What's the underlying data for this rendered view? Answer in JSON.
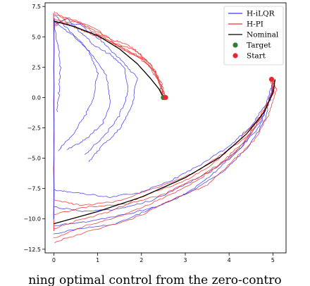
{
  "chart_data": {
    "type": "line",
    "title": "",
    "xlabel": "",
    "ylabel": "",
    "xlim": [
      -0.2,
      5.3
    ],
    "ylim": [
      -12.8,
      7.8
    ],
    "x_ticks": [
      0,
      1,
      2,
      3,
      4,
      5
    ],
    "x_tick_labels": [
      "0",
      "1",
      "2",
      "3",
      "4",
      "5"
    ],
    "y_ticks": [
      7.5,
      5.0,
      2.5,
      0.0,
      -2.5,
      -5.0,
      -7.5,
      -10.0,
      -12.5
    ],
    "y_tick_labels": [
      "7.5",
      "5.0",
      "2.5",
      "0.0",
      "−2.5",
      "−5.0",
      "−7.5",
      "−10.0",
      "−12.5"
    ],
    "grid": false,
    "legend_position": "top-right",
    "colors": {
      "h_ilqr": "#3b3bf0",
      "h_pi": "#f03030",
      "nominal": "#000000",
      "target": "#2e7d32",
      "start": "#e8262d"
    },
    "legend": [
      {
        "key": "h_ilqr",
        "label": "H-iLQR",
        "marker": "line"
      },
      {
        "key": "h_pi",
        "label": "H-PI",
        "marker": "line"
      },
      {
        "key": "nominal",
        "label": "Nominal",
        "marker": "line"
      },
      {
        "key": "target",
        "label": "Target",
        "marker": "dot"
      },
      {
        "key": "start",
        "label": "Start",
        "marker": "dot"
      }
    ],
    "series": [
      {
        "key": "nominal",
        "x": [
          0.0,
          0.5,
          1.0,
          1.5,
          1.9,
          2.2,
          2.4,
          2.5
        ],
        "y": [
          6.3,
          5.8,
          5.1,
          4.0,
          2.8,
          1.6,
          0.7,
          0.0
        ]
      },
      {
        "key": "nominal",
        "x": [
          0.0,
          1.0,
          2.0,
          3.0,
          3.8,
          4.4,
          4.8,
          5.0,
          5.05
        ],
        "y": [
          -10.4,
          -9.4,
          -8.2,
          -6.6,
          -4.9,
          -3.0,
          -1.2,
          0.4,
          1.5
        ]
      },
      {
        "key": "target",
        "x": [
          2.5
        ],
        "y": [
          0.0
        ]
      },
      {
        "key": "start",
        "x": [
          2.55,
          4.97
        ],
        "y": [
          0.0,
          1.5
        ]
      }
    ],
    "trajectories": {
      "h_pi_upper": [
        {
          "x": [
            0.0,
            0.4,
            0.9,
            1.3,
            1.7,
            2.0,
            2.3,
            2.45,
            2.5
          ],
          "y": [
            6.9,
            6.4,
            5.6,
            4.8,
            4.3,
            3.5,
            2.3,
            1.0,
            0.0
          ]
        },
        {
          "x": [
            0.0,
            0.5,
            1.0,
            1.4,
            1.8,
            2.1,
            2.35,
            2.5
          ],
          "y": [
            6.1,
            6.3,
            5.2,
            4.4,
            3.7,
            3.0,
            1.6,
            0.0
          ]
        },
        {
          "x": [
            0.0,
            0.4,
            0.8,
            1.3,
            1.8,
            2.2,
            2.4,
            2.55
          ],
          "y": [
            7.1,
            5.9,
            5.3,
            4.6,
            4.0,
            2.8,
            1.4,
            0.1
          ]
        },
        {
          "x": [
            0.0,
            0.6,
            1.1,
            1.6,
            2.0,
            2.3,
            2.45,
            2.5
          ],
          "y": [
            6.5,
            5.6,
            5.0,
            3.9,
            3.2,
            2.1,
            0.9,
            0.0
          ]
        },
        {
          "x": [
            0.0,
            0.3,
            0.9,
            1.5,
            1.9,
            2.25,
            2.45,
            2.55
          ],
          "y": [
            5.8,
            6.6,
            5.8,
            4.2,
            3.4,
            2.4,
            1.2,
            0.0
          ]
        }
      ],
      "h_ilqr_upper": [
        {
          "x": [
            0.0,
            0.3,
            0.6,
            0.9,
            1.3,
            1.6,
            1.7,
            1.5,
            1.1,
            0.7
          ],
          "y": [
            6.0,
            6.5,
            5.4,
            4.4,
            3.5,
            2.5,
            0.5,
            -1.5,
            -3.4,
            -4.7
          ]
        },
        {
          "x": [
            0.0,
            0.4,
            0.8,
            1.0,
            0.9,
            0.7,
            0.4,
            0.1
          ],
          "y": [
            6.3,
            5.2,
            3.8,
            2.0,
            0.0,
            -1.6,
            -3.2,
            -4.4
          ]
        },
        {
          "x": [
            0.0,
            0.5,
            0.9,
            1.2,
            1.3,
            1.1,
            0.7,
            0.3
          ],
          "y": [
            6.8,
            5.0,
            3.4,
            1.8,
            -0.4,
            -2.2,
            -3.5,
            -4.3
          ]
        },
        {
          "x": [
            0.0,
            0.6,
            1.1,
            1.5,
            1.9,
            1.8,
            1.5,
            1.1,
            0.8
          ],
          "y": [
            6.2,
            6.0,
            4.6,
            3.2,
            1.6,
            -0.5,
            -2.6,
            -4.0,
            -5.3
          ]
        },
        {
          "x": [
            0.0,
            0.15,
            0.12,
            0.08
          ],
          "y": [
            6.5,
            2.8,
            0.5,
            -1.2
          ]
        }
      ],
      "h_pi_lower": [
        {
          "x": [
            0.0,
            0.7,
            1.5,
            2.3,
            3.0,
            3.7,
            4.3,
            4.7,
            4.95,
            5.0
          ],
          "y": [
            -11.6,
            -10.6,
            -9.8,
            -8.6,
            -7.4,
            -5.8,
            -3.8,
            -1.8,
            0.2,
            1.5
          ]
        },
        {
          "x": [
            0.0,
            0.6,
            1.4,
            2.2,
            3.1,
            3.8,
            4.4,
            4.8,
            5.0,
            4.95
          ],
          "y": [
            -8.4,
            -8.9,
            -8.6,
            -7.6,
            -6.4,
            -4.8,
            -3.2,
            -1.2,
            0.5,
            1.6
          ]
        },
        {
          "x": [
            0.0,
            0.8,
            1.6,
            2.5,
            3.3,
            4.0,
            4.5,
            4.85,
            5.05,
            5.0
          ],
          "y": [
            -9.6,
            -9.0,
            -8.8,
            -8.0,
            -6.6,
            -5.0,
            -3.0,
            -0.9,
            0.8,
            1.4
          ]
        },
        {
          "x": [
            0.0,
            0.5,
            1.3,
            2.1,
            2.9,
            3.6,
            4.2,
            4.7,
            5.0,
            5.05
          ],
          "y": [
            -10.8,
            -10.2,
            -9.4,
            -8.0,
            -7.0,
            -5.6,
            -3.6,
            -1.6,
            0.3,
            1.5
          ]
        },
        {
          "x": [
            0.0,
            0.9,
            1.8,
            2.7,
            3.5,
            4.1,
            4.6,
            4.9,
            5.08,
            4.98
          ],
          "y": [
            -11.9,
            -10.9,
            -10.0,
            -8.4,
            -7.2,
            -5.2,
            -3.4,
            -1.4,
            0.6,
            1.6
          ]
        }
      ],
      "h_ilqr_lower": [
        {
          "x": [
            0.0,
            0.6,
            1.3,
            2.0,
            2.7,
            3.4,
            4.0,
            4.5,
            4.85,
            5.0
          ],
          "y": [
            -7.6,
            -7.9,
            -8.2,
            -7.8,
            -6.8,
            -5.4,
            -4.0,
            -2.4,
            -0.5,
            1.3
          ]
        },
        {
          "x": [
            0.0,
            0.7,
            1.5,
            2.3,
            3.0,
            3.7,
            4.3,
            4.7,
            4.95,
            5.0
          ],
          "y": [
            -9.0,
            -9.4,
            -9.2,
            -8.4,
            -7.2,
            -5.8,
            -4.0,
            -2.0,
            -0.2,
            1.4
          ]
        },
        {
          "x": [
            0.0,
            0.8,
            1.7,
            2.5,
            3.2,
            3.9,
            4.4,
            4.8,
            5.0
          ],
          "y": [
            -10.6,
            -10.2,
            -9.6,
            -8.8,
            -7.6,
            -6.0,
            -4.2,
            -2.0,
            1.0
          ]
        },
        {
          "x": [
            0.0,
            0.6,
            1.4,
            2.2,
            3.0,
            3.6,
            4.2,
            4.7,
            5.0
          ],
          "y": [
            -11.2,
            -10.8,
            -10.4,
            -9.2,
            -8.0,
            -6.4,
            -4.4,
            -2.4,
            0.6
          ]
        }
      ],
      "vertical_spikes": [
        {
          "color_key": "h_pi",
          "x": [
            0.0,
            0.0
          ],
          "y": [
            7.0,
            -11.0
          ]
        },
        {
          "color_key": "h_ilqr",
          "x": [
            0.0,
            0.0
          ],
          "y": [
            6.5,
            -10.0
          ]
        }
      ]
    }
  },
  "caption": {
    "text": "ning optimal control from the zero-contro"
  }
}
